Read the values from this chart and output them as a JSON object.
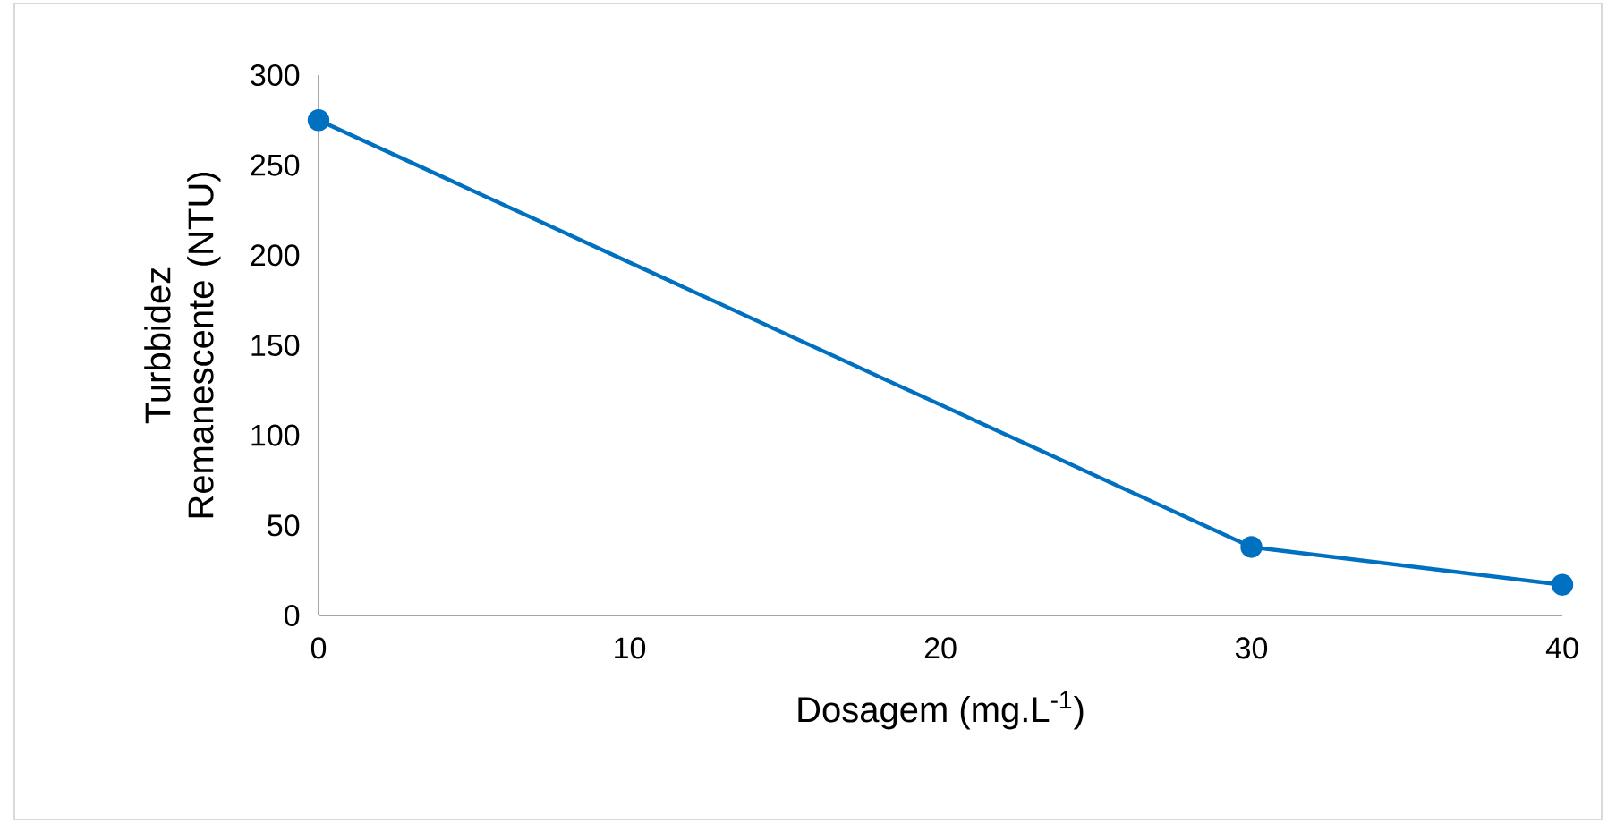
{
  "chart_data": {
    "type": "line",
    "xlabel": "Dosagem (mg.L$^{-1}$)",
    "ylabel": "Turbbidez Remanescente (NTU)",
    "x": [
      0,
      30,
      40
    ],
    "series": [
      {
        "color": "#0070c0",
        "values": [
          275,
          38,
          17
        ]
      }
    ],
    "xlim": [
      0,
      40
    ],
    "xticks": [
      0,
      10,
      20,
      30,
      40
    ],
    "ylim": [
      0,
      300
    ],
    "yticks": [
      0,
      50,
      100,
      150,
      200,
      250,
      300
    ],
    "grid": false,
    "legend": false,
    "marker": "circle",
    "line_style": "solid"
  }
}
